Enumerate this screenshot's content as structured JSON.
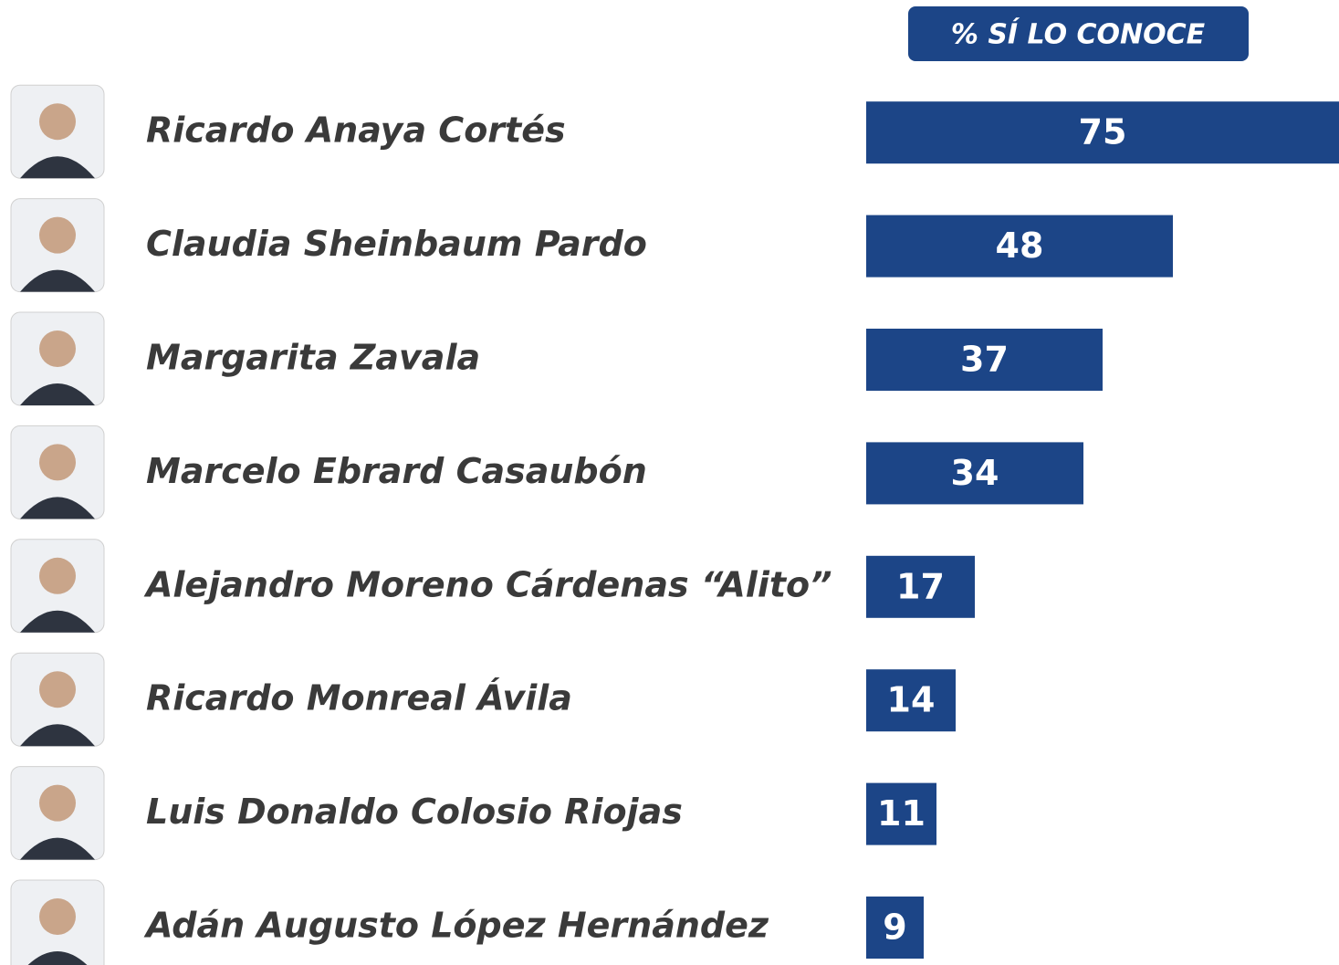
{
  "chart_data": {
    "type": "barh",
    "title": "% SÍ LO CONOCE",
    "categories": [
      "Ricardo Anaya Cortés",
      "Claudia Sheinbaum Pardo",
      "Margarita Zavala",
      "Marcelo Ebrard Casaubón",
      "Alejandro Moreno Cárdenas “Alito”",
      "Ricardo Monreal Ávila",
      "Luis Donaldo Colosio Riojas",
      "Adán Augusto López Hernández"
    ],
    "values": [
      75,
      48,
      37,
      34,
      17,
      14,
      11,
      9
    ],
    "color": "#1c4587",
    "xlim": [
      0,
      74
    ]
  }
}
